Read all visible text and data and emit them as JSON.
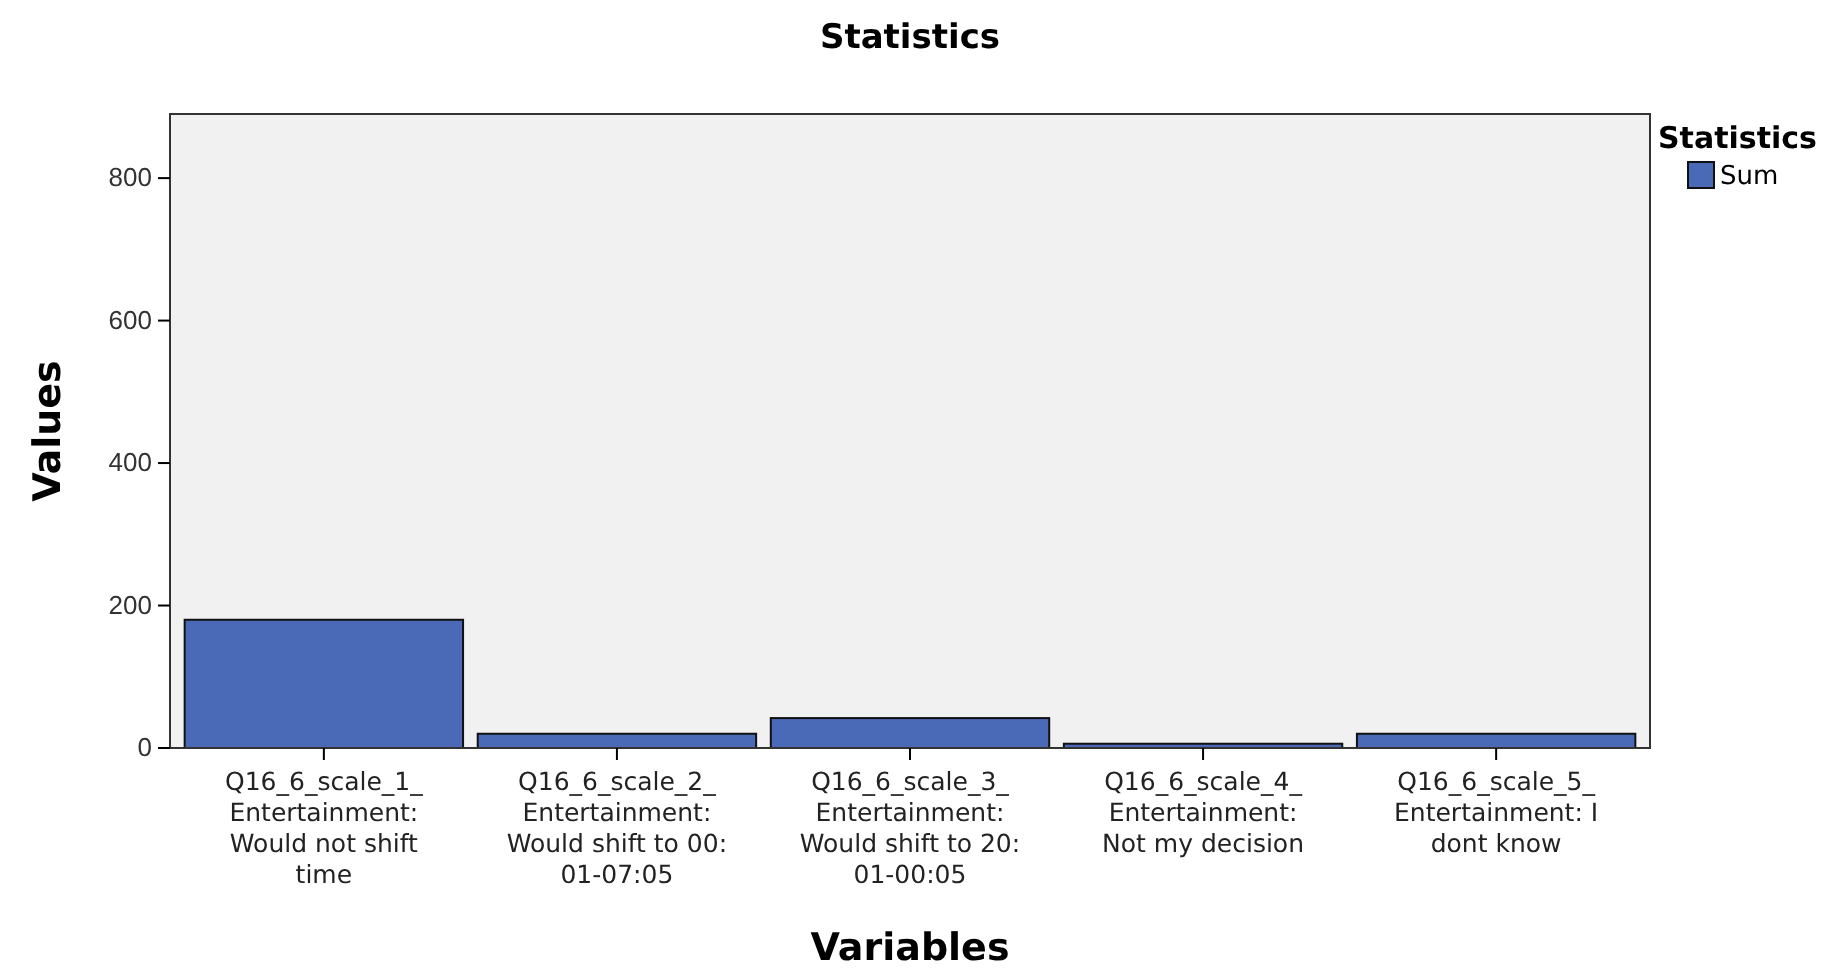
{
  "chart_data": {
    "type": "bar",
    "title": "Statistics",
    "xlabel": "Variables",
    "ylabel": "Values",
    "legend_title": "Statistics",
    "legend": "top right",
    "grid": false,
    "categories": [
      "Q16_6_scale_1_\nEntertainment:\nWould not shift\ntime",
      "Q16_6_scale_2_\nEntertainment:\nWould shift to 00:\n01-07:05",
      "Q16_6_scale_3_\nEntertainment:\nWould shift to 20:\n01-00:05",
      "Q16_6_scale_4_\nEntertainment:\nNot my decision",
      "Q16_6_scale_5_\nEntertainment: I\ndont know"
    ],
    "series": [
      {
        "name": "Sum",
        "color": "#4a6ab8",
        "values": [
          180,
          20,
          42,
          6,
          20
        ]
      }
    ],
    "ylim": [
      0,
      890
    ],
    "yticks": [
      0,
      200,
      400,
      600,
      800
    ]
  }
}
